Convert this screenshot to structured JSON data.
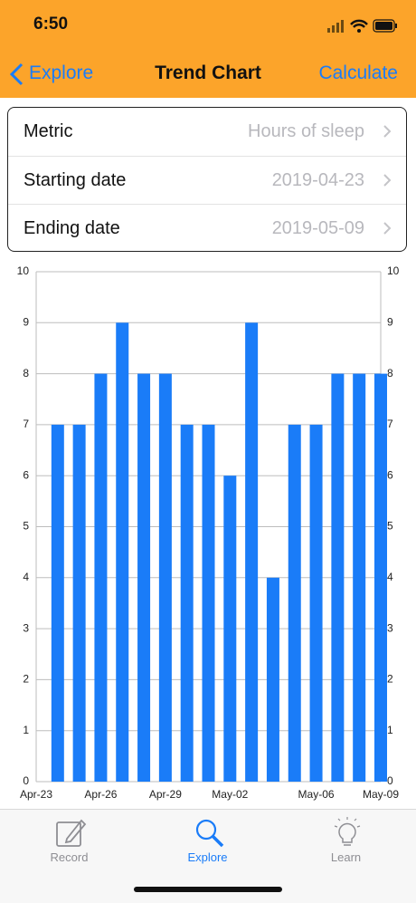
{
  "status_bar": {
    "time": "6:50"
  },
  "nav": {
    "back": "Explore",
    "title": "Trend Chart",
    "action": "Calculate"
  },
  "form": {
    "rows": [
      {
        "label": "Metric",
        "value": "Hours of sleep"
      },
      {
        "label": "Starting date",
        "value": "2019-04-23"
      },
      {
        "label": "Ending date",
        "value": "2019-05-09"
      }
    ]
  },
  "chart_data": {
    "type": "bar",
    "categories": [
      "Apr-23",
      null,
      null,
      "Apr-26",
      null,
      null,
      "Apr-29",
      null,
      null,
      "May-02",
      null,
      null,
      null,
      "May-06",
      null,
      null,
      "May-09"
    ],
    "values": [
      null,
      7,
      7,
      8,
      9,
      8,
      8,
      7,
      7,
      6,
      9,
      4,
      7,
      7,
      8,
      8,
      8
    ],
    "color": "#1a7cf8",
    "ylim": [
      0,
      10
    ],
    "yticks": [
      0,
      1,
      2,
      3,
      4,
      5,
      6,
      7,
      8,
      9,
      10
    ],
    "grid": true,
    "right_axis": true
  },
  "tab_bar": {
    "items": [
      {
        "label": "Record",
        "selected": false
      },
      {
        "label": "Explore",
        "selected": true
      },
      {
        "label": "Learn",
        "selected": false
      }
    ]
  }
}
